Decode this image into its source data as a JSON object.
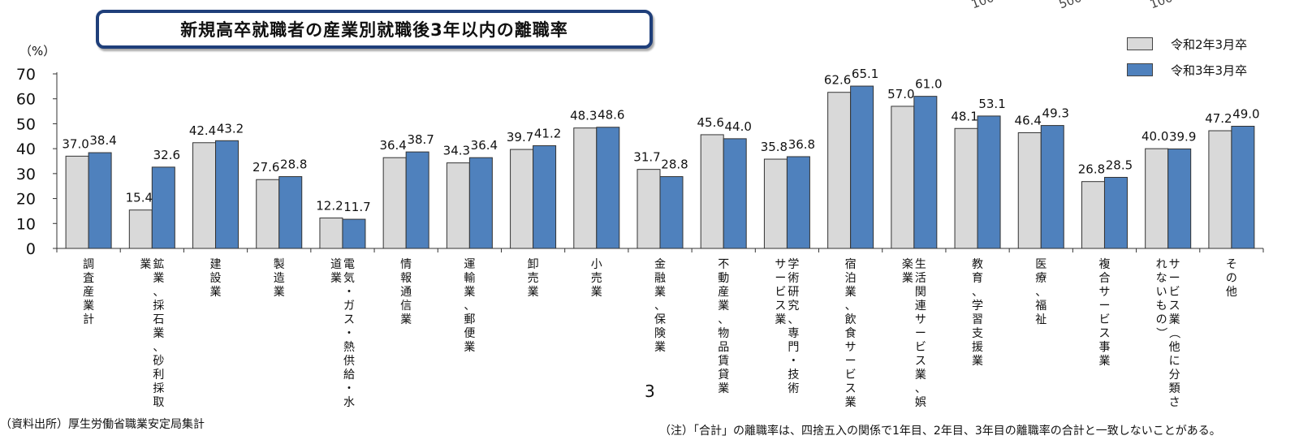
{
  "title": "新規高卒就職者の産業別就職後3年以内の離職率",
  "unit": "（%）",
  "top_fragments": [
    "100",
    "500",
    "100"
  ],
  "legend": [
    {
      "label": "令和2年3月卒",
      "color": "#d9d9d9"
    },
    {
      "label": "令和3年3月卒",
      "color": "#4f81bd"
    }
  ],
  "page_number": "3",
  "source": "（資料出所）厚生労働省職業安定局集計",
  "note": "（注）「合計」の離職率は、四捨五入の関係で1年目、2年目、3年目の離職率の合計と一致しないことがある。",
  "chart_data": {
    "type": "bar",
    "title": "新規高卒就職者の産業別就職後3年以内の離職率",
    "ylabel": "（%）",
    "ylim": [
      0,
      70
    ],
    "yticks": [
      0,
      10,
      20,
      30,
      40,
      50,
      60,
      70
    ],
    "grid": false,
    "legend_position": "top-right",
    "categories": [
      [
        "調",
        "査",
        "産",
        "業",
        "計"
      ],
      [
        "鉱業、採石業、砂利採取",
        "業"
      ],
      [
        "建",
        "設",
        "業"
      ],
      [
        "製",
        "造",
        "業"
      ],
      [
        "電気・ガス・熱供給・水",
        "道業"
      ],
      [
        "情",
        "報",
        "通",
        "信",
        "業"
      ],
      [
        "運輸業、郵便業"
      ],
      [
        "卸",
        "売",
        "業"
      ],
      [
        "小",
        "売",
        "業"
      ],
      [
        "金融業、保険業"
      ],
      [
        "不動産業、物品賃貸業"
      ],
      [
        "学術研究、専門・技術",
        "サービス業"
      ],
      [
        "宿泊業、飲食サービス業"
      ],
      [
        "生活関連サービス業、娯",
        "楽業"
      ],
      [
        "教育、学習支援業"
      ],
      [
        "医療、福祉"
      ],
      [
        "複合サービス事業"
      ],
      [
        "サービス業（他に分類さ",
        "れないもの）"
      ],
      [
        "そ",
        "の",
        "他"
      ]
    ],
    "series": [
      {
        "name": "令和2年3月卒",
        "color": "#d9d9d9",
        "values": [
          37.0,
          15.4,
          42.4,
          27.6,
          12.2,
          36.4,
          34.3,
          39.7,
          48.3,
          31.7,
          45.6,
          35.8,
          62.6,
          57.0,
          48.1,
          46.4,
          26.8,
          40.0,
          47.2
        ],
        "labels": [
          "37.0",
          "15.4",
          "42.4",
          "27.6",
          "12.2",
          "36.4",
          "34.3",
          "39.7",
          "48.3",
          "31.7",
          "45.6",
          "35.8",
          "62.6",
          "57.0",
          "48.1",
          "46.4",
          "26.8",
          "40.0",
          "47.2"
        ]
      },
      {
        "name": "令和3年3月卒",
        "color": "#4f81bd",
        "values": [
          38.4,
          32.6,
          43.2,
          28.8,
          11.7,
          38.7,
          36.4,
          41.2,
          48.6,
          28.8,
          44.0,
          36.8,
          65.1,
          61.0,
          53.1,
          49.3,
          28.5,
          39.9,
          49.0
        ],
        "labels": [
          "38.4",
          "32.6",
          "43.2",
          "28.8",
          "11.7",
          "38.7",
          "36.4",
          "41.2",
          "48.6",
          "28.8",
          "44.0",
          "36.8",
          "65.1",
          "61.0",
          "53.1",
          "49.3",
          "28.5",
          "39.9",
          "49.0"
        ]
      }
    ]
  }
}
